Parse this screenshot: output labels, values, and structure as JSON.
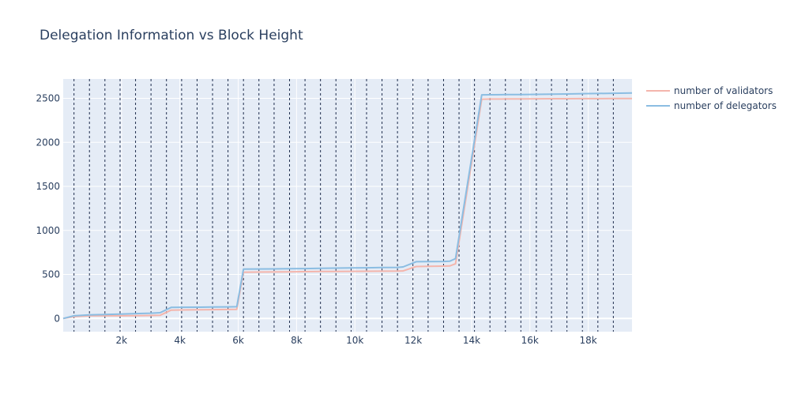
{
  "chart_data": {
    "type": "line",
    "title": "Delegation Information vs Block Height",
    "xlabel": "",
    "ylabel": "",
    "xlim": [
      0,
      19500
    ],
    "ylim": [
      -150,
      2720
    ],
    "x_ticks": [
      2000,
      4000,
      6000,
      8000,
      10000,
      12000,
      14000,
      16000,
      18000
    ],
    "x_tick_labels": [
      "2k",
      "4k",
      "6k",
      "8k",
      "10k",
      "12k",
      "14k",
      "16k",
      "18k"
    ],
    "y_ticks": [
      0,
      500,
      1000,
      1500,
      2000,
      2500
    ],
    "y_tick_labels": [
      "0",
      "500",
      "1000",
      "1500",
      "2000",
      "2500"
    ],
    "grid": true,
    "legend_position": "right",
    "background_color": "#e5ecf6",
    "vertical_lines": [
      370,
      900,
      1430,
      1950,
      2480,
      3010,
      3540,
      4060,
      4590,
      5120,
      5650,
      6180,
      6710,
      7230,
      7760,
      8290,
      8820,
      9350,
      9870,
      10400,
      10930,
      11460,
      11990,
      12510,
      13040,
      13570,
      14100,
      14630,
      15160,
      15690,
      16220,
      16740,
      17270,
      17800,
      18330,
      18860
    ],
    "series": [
      {
        "name": "number of validators",
        "color": "#f4b5ac",
        "x": [
          0,
          370,
          900,
          1430,
          1950,
          2480,
          3010,
          3320,
          3700,
          4060,
          4590,
          5120,
          5650,
          5950,
          6180,
          6710,
          7230,
          7760,
          8290,
          8820,
          9350,
          9870,
          10400,
          10930,
          11460,
          11650,
          12100,
          12510,
          13040,
          13250,
          13450,
          14350,
          14630,
          15160,
          15690,
          16220,
          16740,
          17270,
          17800,
          18330,
          18860,
          19500
        ],
        "y": [
          0,
          20,
          30,
          30,
          30,
          32,
          34,
          36,
          95,
          97,
          98,
          100,
          102,
          104,
          525,
          527,
          528,
          530,
          532,
          533,
          534,
          535,
          536,
          537,
          538,
          540,
          590,
          592,
          594,
          596,
          620,
          2490,
          2492,
          2493,
          2494,
          2495,
          2496,
          2496,
          2497,
          2497,
          2498,
          2498
        ]
      },
      {
        "name": "number of delegators",
        "color": "#8bbde2",
        "x": [
          0,
          370,
          900,
          1430,
          1950,
          2480,
          3010,
          3320,
          3700,
          4060,
          4590,
          5120,
          5650,
          5950,
          6180,
          6710,
          7230,
          7760,
          8290,
          8820,
          9350,
          9870,
          10400,
          10930,
          11460,
          11650,
          12100,
          12510,
          13040,
          13250,
          13450,
          14350,
          14630,
          15160,
          15690,
          16220,
          16740,
          17270,
          17800,
          18330,
          18860,
          19500
        ],
        "y": [
          0,
          30,
          40,
          45,
          50,
          55,
          60,
          65,
          125,
          127,
          128,
          130,
          132,
          133,
          560,
          562,
          563,
          565,
          567,
          570,
          572,
          574,
          576,
          578,
          580,
          585,
          645,
          646,
          647,
          650,
          680,
          2540,
          2541,
          2542,
          2543,
          2545,
          2548,
          2550,
          2553,
          2555,
          2558,
          2560
        ]
      }
    ]
  }
}
